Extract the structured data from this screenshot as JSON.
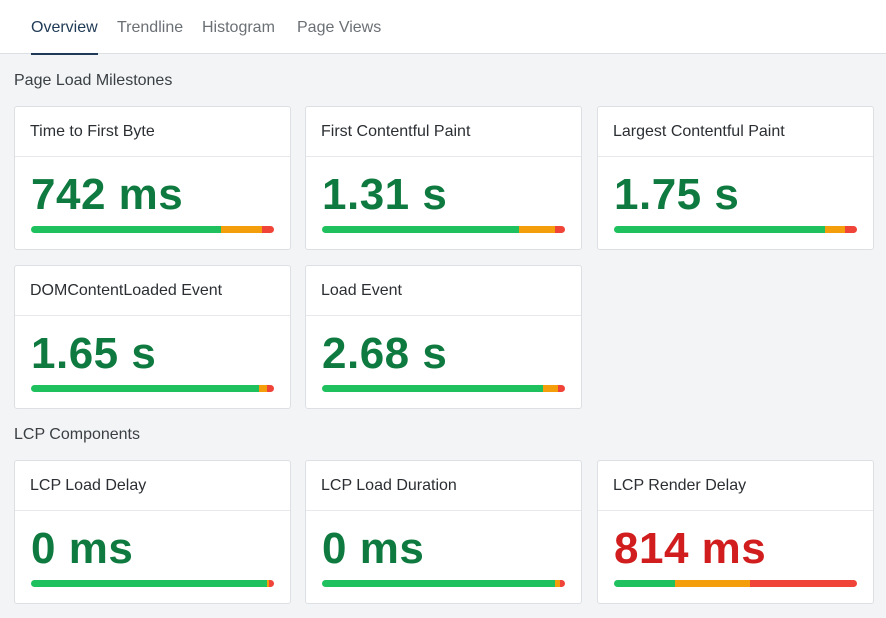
{
  "tabs": [
    {
      "label": "Overview",
      "active": true
    },
    {
      "label": "Trendline",
      "active": false
    },
    {
      "label": "Histogram",
      "active": false
    },
    {
      "label": "Page Views",
      "active": false
    }
  ],
  "colors": {
    "good": "#1fc15e",
    "needs_improvement": "#f59e0b",
    "poor": "#f04438",
    "good_text": "#0f7a3f",
    "poor_text": "#d11d1d"
  },
  "sections": {
    "page_load": {
      "title": "Page Load Milestones",
      "cards": [
        {
          "label": "Time to First Byte",
          "value": "742 ms",
          "status": "good",
          "distribution": {
            "good": 78,
            "needs_improvement": 17,
            "poor": 5
          }
        },
        {
          "label": "First Contentful Paint",
          "value": "1.31 s",
          "status": "good",
          "distribution": {
            "good": 81,
            "needs_improvement": 15,
            "poor": 4
          }
        },
        {
          "label": "Largest Contentful Paint",
          "value": "1.75 s",
          "status": "good",
          "distribution": {
            "good": 87,
            "needs_improvement": 8,
            "poor": 5
          }
        },
        {
          "label": "DOMContentLoaded Event",
          "value": "1.65 s",
          "status": "good",
          "distribution": {
            "good": 94,
            "needs_improvement": 3,
            "poor": 3
          }
        },
        {
          "label": "Load Event",
          "value": "2.68 s",
          "status": "good",
          "distribution": {
            "good": 91,
            "needs_improvement": 6,
            "poor": 3
          }
        }
      ]
    },
    "lcp": {
      "title": "LCP Components",
      "cards": [
        {
          "label": "LCP Load Delay",
          "value": "0 ms",
          "status": "good",
          "distribution": {
            "good": 97,
            "needs_improvement": 1,
            "poor": 2
          }
        },
        {
          "label": "LCP Load Duration",
          "value": "0 ms",
          "status": "good",
          "distribution": {
            "good": 96,
            "needs_improvement": 2,
            "poor": 2
          }
        },
        {
          "label": "LCP Render Delay",
          "value": "814 ms",
          "status": "poor",
          "distribution": {
            "good": 25,
            "needs_improvement": 31,
            "poor": 44
          }
        }
      ]
    }
  }
}
